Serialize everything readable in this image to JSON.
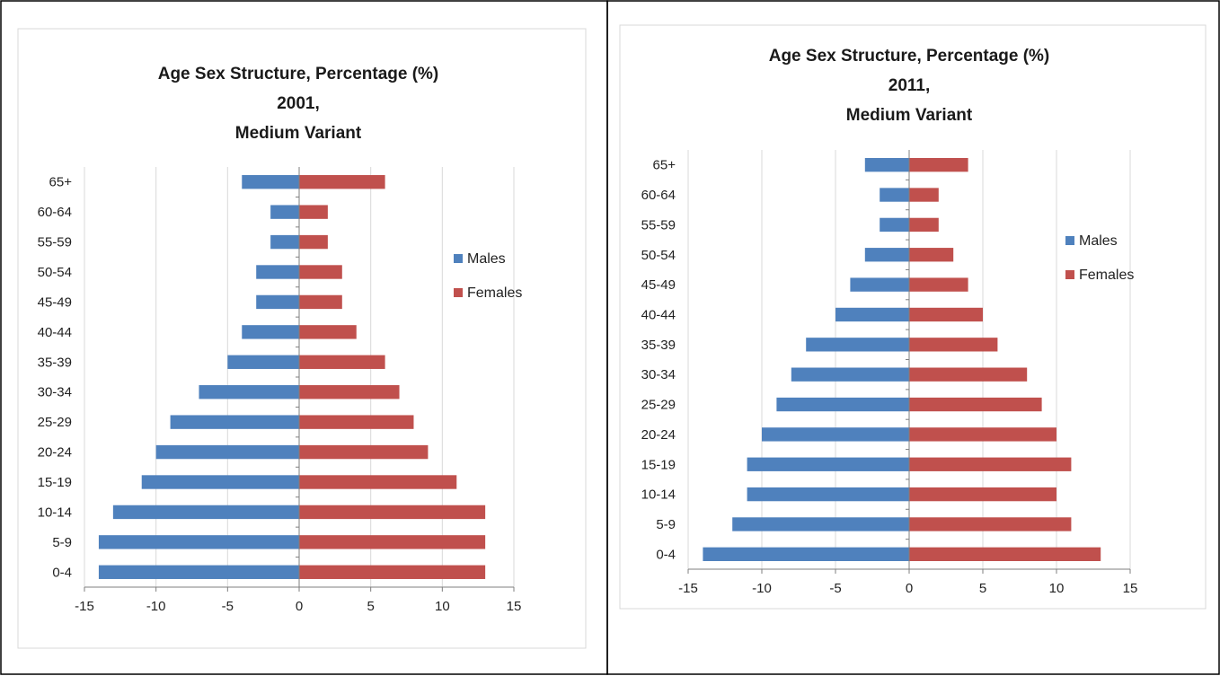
{
  "colors": {
    "males": "#4F81BD",
    "females": "#C0504D",
    "grid": "#D9D9D9",
    "axis": "#7F7F7F",
    "border": "#000000"
  },
  "chart_data": [
    {
      "type": "bar",
      "orientation": "horizontal",
      "title": [
        "Age Sex Structure, Percentage (%)",
        "2001,",
        "Medium Variant"
      ],
      "categories": [
        "0-4",
        "5-9",
        "10-14",
        "15-19",
        "20-24",
        "25-29",
        "30-34",
        "35-39",
        "40-44",
        "45-49",
        "50-54",
        "55-59",
        "60-64",
        "65+"
      ],
      "series": [
        {
          "name": "Males",
          "values": [
            -14,
            -14,
            -13,
            -11,
            -10,
            -9,
            -7,
            -5,
            -4,
            -3,
            -3,
            -2,
            -2,
            -4
          ]
        },
        {
          "name": "Females",
          "values": [
            13,
            13,
            13,
            11,
            9,
            8,
            7,
            6,
            4,
            3,
            3,
            2,
            2,
            6
          ]
        }
      ],
      "xlim": [
        -15,
        15
      ],
      "xticks": [
        -15,
        -10,
        -5,
        0,
        5,
        10,
        15
      ],
      "xlabel": "",
      "ylabel": "",
      "grid": true,
      "legend": "right"
    },
    {
      "type": "bar",
      "orientation": "horizontal",
      "title": [
        "Age Sex Structure, Percentage (%)",
        "2011,",
        "Medium Variant"
      ],
      "categories": [
        "0-4",
        "5-9",
        "10-14",
        "15-19",
        "20-24",
        "25-29",
        "30-34",
        "35-39",
        "40-44",
        "45-49",
        "50-54",
        "55-59",
        "60-64",
        "65+"
      ],
      "series": [
        {
          "name": "Males",
          "values": [
            -14,
            -12,
            -11,
            -11,
            -10,
            -9,
            -8,
            -7,
            -5,
            -4,
            -3,
            -2,
            -2,
            -3
          ]
        },
        {
          "name": "Females",
          "values": [
            13,
            11,
            10,
            11,
            10,
            9,
            8,
            6,
            5,
            4,
            3,
            2,
            2,
            4
          ]
        }
      ],
      "xlim": [
        -15,
        15
      ],
      "xticks": [
        -15,
        -10,
        -5,
        0,
        5,
        10,
        15
      ],
      "xlabel": "",
      "ylabel": "",
      "grid": true,
      "legend": "right"
    }
  ]
}
